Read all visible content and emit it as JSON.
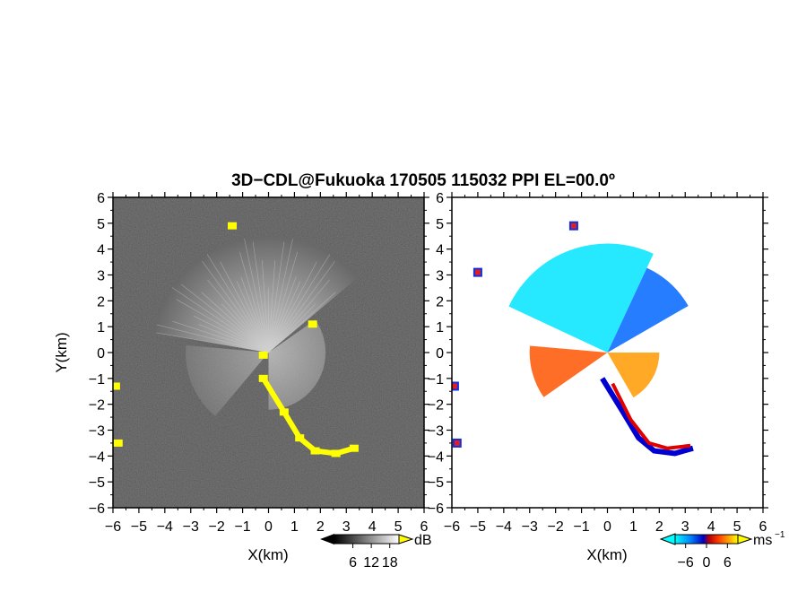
{
  "title": "3D−CDL@Fukuoka 170505 115032 PPI EL=00.0º",
  "chart_data": [
    {
      "type": "heatmap",
      "panel": "reflectivity",
      "xlabel": "X(km)",
      "ylabel": "Y(km)",
      "xlim": [
        -6,
        6
      ],
      "ylim": [
        -6,
        6
      ],
      "xticks": [
        "−6",
        "−5",
        "−4",
        "−3",
        "−2",
        "−1",
        "0",
        "1",
        "2",
        "3",
        "4",
        "5",
        "6"
      ],
      "yticks": [
        "6",
        "5",
        "4",
        "3",
        "2",
        "1",
        "0",
        "−1",
        "−2",
        "−3",
        "−4",
        "−5",
        "−6"
      ],
      "colorbar": {
        "unit": "dB",
        "ticks": [
          "6",
          "12",
          "18"
        ],
        "colors": [
          "#000000",
          "#ffffff",
          "#ffff00"
        ]
      },
      "background_color": "#262626",
      "echo_fan": {
        "center": [
          0,
          0
        ],
        "azimuth_deg": [
          -80,
          50
        ],
        "range_km": 4.5
      },
      "highlight_color": "#ffff00",
      "highlighted_echoes": [
        {
          "x": -0.2,
          "y": -1.0
        },
        {
          "x": 0.6,
          "y": -2.3
        },
        {
          "x": 1.2,
          "y": -3.3
        },
        {
          "x": 1.8,
          "y": -3.8
        },
        {
          "x": 2.6,
          "y": -3.9
        },
        {
          "x": 3.3,
          "y": -3.7
        },
        {
          "x": -5.9,
          "y": -1.3
        },
        {
          "x": -5.8,
          "y": -3.5
        },
        {
          "x": -1.4,
          "y": 4.9
        },
        {
          "x": 1.7,
          "y": 1.1
        },
        {
          "x": -0.2,
          "y": -0.1
        }
      ]
    },
    {
      "type": "heatmap",
      "panel": "doppler_velocity",
      "xlabel": "X(km)",
      "xlim": [
        -6,
        6
      ],
      "ylim": [
        -6,
        6
      ],
      "xticks": [
        "−6",
        "−5",
        "−4",
        "−3",
        "−2",
        "−1",
        "0",
        "1",
        "2",
        "3",
        "4",
        "5",
        "6"
      ],
      "yticks": [
        "6",
        "5",
        "4",
        "3",
        "2",
        "1",
        "0",
        "−1",
        "−2",
        "−3",
        "−4",
        "−5",
        "−6"
      ],
      "colorbar": {
        "unit": "ms",
        "unit_sup": "−1",
        "ticks": [
          "−6",
          "0",
          "6"
        ],
        "colors": [
          "#00ffff",
          "#0080ff",
          "#0000c0",
          "#c00000",
          "#ff4000",
          "#ffa000",
          "#ffff00"
        ]
      },
      "background_color": "#ffffff",
      "fan_sectors": [
        {
          "azimuth_deg": [
            -65,
            25
          ],
          "range_km": 4.2,
          "velocity": -5,
          "color": "#00e5ff"
        },
        {
          "azimuth_deg": [
            25,
            60
          ],
          "range_km": 3.6,
          "velocity": -2,
          "color": "#0066ff"
        },
        {
          "azimuth_deg": [
            90,
            150
          ],
          "range_km": 2.0,
          "velocity": 4,
          "color": "#ff9a00"
        },
        {
          "azimuth_deg": [
            235,
            275
          ],
          "range_km": 3.0,
          "velocity": 2,
          "color": "#ff5500"
        }
      ],
      "edge_echoes": [
        {
          "x": -5.9,
          "y": -1.3
        },
        {
          "x": -5.8,
          "y": -3.5
        },
        {
          "x": -1.3,
          "y": 4.9
        },
        {
          "x": -5.0,
          "y": 3.1
        }
      ]
    }
  ]
}
